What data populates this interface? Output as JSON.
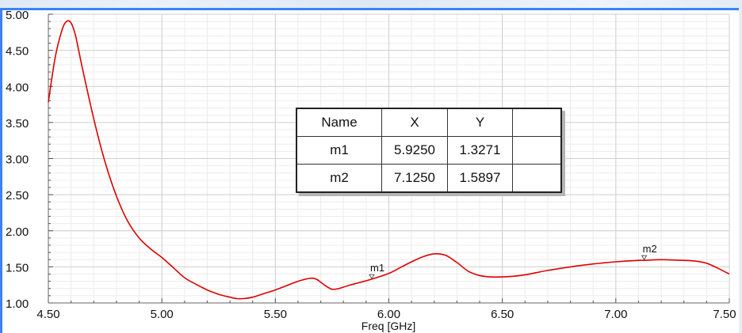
{
  "chart_data": {
    "type": "line",
    "title": "",
    "xlabel": "Freq [GHz]",
    "ylabel": "",
    "xlim": [
      4.5,
      7.5
    ],
    "ylim": [
      1.0,
      5.0
    ],
    "x_ticks": [
      "4.50",
      "5.00",
      "5.50",
      "6.00",
      "6.50",
      "7.00",
      "7.50"
    ],
    "y_ticks": [
      "1.00",
      "1.50",
      "2.00",
      "2.50",
      "3.00",
      "3.50",
      "4.00",
      "4.50",
      "5.00"
    ],
    "grid": true,
    "legend": "none",
    "series": [
      {
        "color": "#e00000",
        "x": [
          4.5,
          4.53,
          4.56,
          4.58,
          4.6,
          4.62,
          4.65,
          4.7,
          4.75,
          4.8,
          4.85,
          4.9,
          4.95,
          5.0,
          5.05,
          5.1,
          5.15,
          5.2,
          5.25,
          5.3,
          5.33,
          5.36,
          5.4,
          5.45,
          5.5,
          5.55,
          5.6,
          5.65,
          5.68,
          5.72,
          5.75,
          5.78,
          5.82,
          5.88,
          5.925,
          6.0,
          6.05,
          6.1,
          6.15,
          6.2,
          6.25,
          6.3,
          6.35,
          6.4,
          6.45,
          6.5,
          6.55,
          6.6,
          6.65,
          6.7,
          6.8,
          6.9,
          7.0,
          7.1,
          7.125,
          7.2,
          7.3,
          7.35,
          7.4,
          7.45,
          7.5
        ],
        "y": [
          3.78,
          4.4,
          4.78,
          4.9,
          4.88,
          4.7,
          4.25,
          3.55,
          2.95,
          2.48,
          2.13,
          1.9,
          1.75,
          1.63,
          1.49,
          1.35,
          1.26,
          1.18,
          1.12,
          1.08,
          1.06,
          1.06,
          1.08,
          1.13,
          1.18,
          1.24,
          1.3,
          1.34,
          1.33,
          1.24,
          1.19,
          1.2,
          1.24,
          1.29,
          1.33,
          1.41,
          1.49,
          1.57,
          1.64,
          1.68,
          1.66,
          1.56,
          1.44,
          1.38,
          1.36,
          1.36,
          1.37,
          1.39,
          1.42,
          1.45,
          1.5,
          1.54,
          1.57,
          1.59,
          1.59,
          1.6,
          1.59,
          1.58,
          1.55,
          1.48,
          1.4
        ]
      }
    ],
    "markers": [
      {
        "name": "m1",
        "x": 5.925,
        "y": 1.3271
      },
      {
        "name": "m2",
        "x": 7.125,
        "y": 1.5897
      }
    ]
  },
  "marker_table": {
    "headers": [
      "Name",
      "X",
      "Y",
      ""
    ],
    "rows": [
      [
        "m1",
        "5.9250",
        "1.3271",
        ""
      ],
      [
        "m2",
        "7.1250",
        "1.5897",
        ""
      ]
    ]
  }
}
